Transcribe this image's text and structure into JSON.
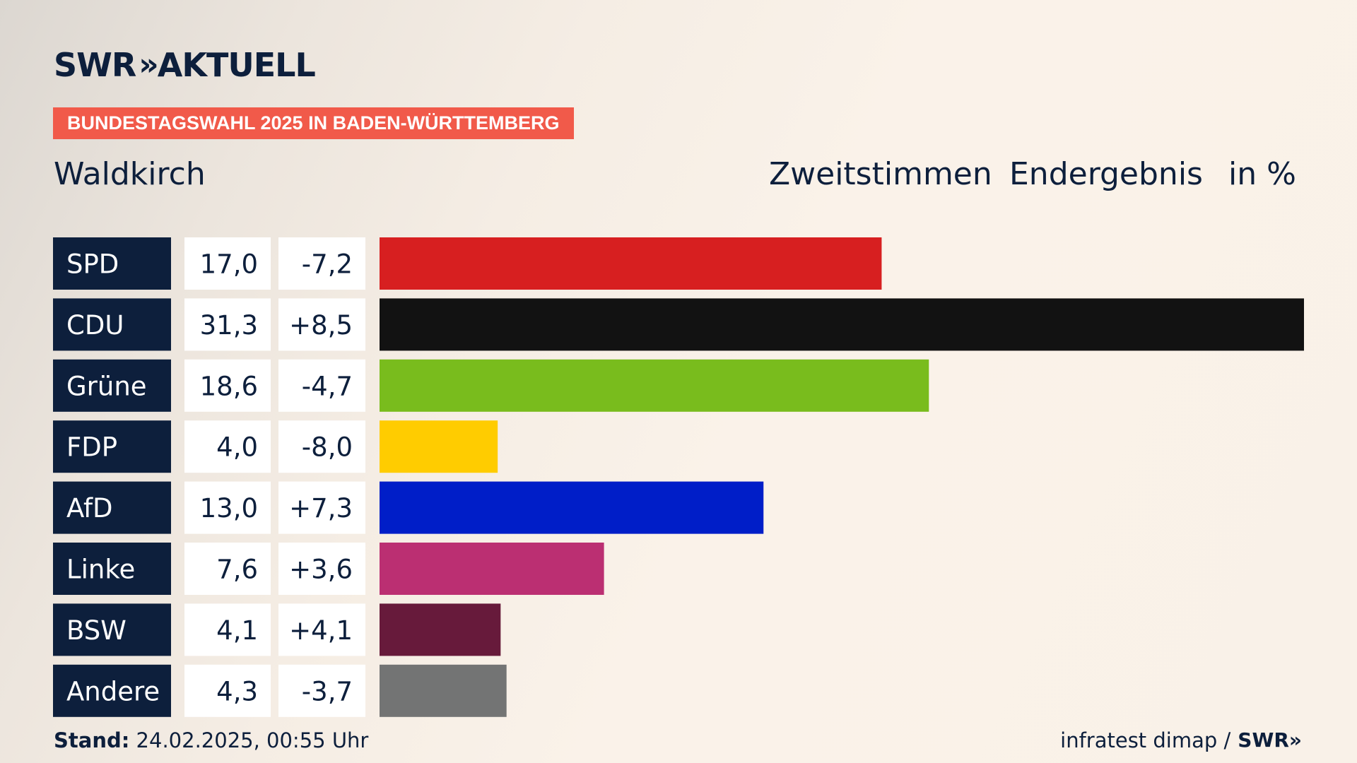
{
  "brand": {
    "logo_text": "SWR",
    "logo_chevrons": "»",
    "logo_suffix": "AKTUELL",
    "color": "#0d1f3c"
  },
  "banner": {
    "label": "BUNDESTAGSWAHL 2025 IN BADEN-WÜRTTEMBERG",
    "color": "#f15a4a"
  },
  "header": {
    "place": "Waldkirch",
    "vote_type": "Zweitstimmen",
    "result_type": "Endergebnis",
    "unit": "in %"
  },
  "chart_data": {
    "type": "bar",
    "orientation": "horizontal",
    "categories": [
      "SPD",
      "CDU",
      "Grüne",
      "FDP",
      "AfD",
      "Linke",
      "BSW",
      "Andere"
    ],
    "values": [
      17.0,
      31.3,
      18.6,
      4.0,
      13.0,
      7.6,
      4.1,
      4.3
    ],
    "value_labels": [
      "17,0",
      "31,3",
      "18,6",
      "4,0",
      "13,0",
      "7,6",
      "4,1",
      "4,3"
    ],
    "change_labels": [
      "-7,2",
      "+8,5",
      "-4,7",
      "-8,0",
      "+7,3",
      "+3,6",
      "+4,1",
      "-3,7"
    ],
    "changes": [
      -7.2,
      8.5,
      -4.7,
      -8.0,
      7.3,
      3.6,
      4.1,
      -3.7
    ],
    "colors": [
      "#d71f20",
      "#121212",
      "#79bc1d",
      "#ffcc00",
      "#001ec8",
      "#bb2f72",
      "#671a3b",
      "#737474"
    ],
    "xlim": [
      0,
      31.3
    ],
    "grid": false,
    "legend": "none"
  },
  "footer": {
    "stand_label": "Stand:",
    "stand_value": "24.02.2025, 00:55 Uhr",
    "source": "infratest dimap /",
    "source_logo": "SWR",
    "source_logo_chevrons": "»"
  }
}
